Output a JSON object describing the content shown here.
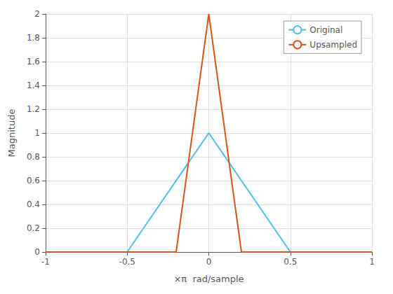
{
  "chart_data": {
    "type": "line",
    "x_label": "×π  rad/sample",
    "y_label": "Magnitude",
    "series": [
      {
        "name": "Original",
        "color": "#4DBEEE",
        "x": [
          -1.0,
          -0.5,
          0.0,
          0.5,
          1.0
        ],
        "values": [
          0.0,
          0.0,
          1.0,
          0.0,
          0.0
        ]
      },
      {
        "name": "Upsampled",
        "color": "#D95319",
        "x": [
          -1.0,
          -0.2,
          0.0,
          0.2,
          1.0
        ],
        "values": [
          0.0,
          0.0,
          2.0,
          0.0,
          0.0
        ]
      }
    ],
    "xlim": [
      -1,
      1
    ],
    "ylim": [
      0,
      2
    ],
    "xticks": [
      -1,
      -0.5,
      0,
      0.5,
      1
    ],
    "yticks": [
      0,
      0.2,
      0.4,
      0.6,
      0.8,
      1,
      1.2,
      1.4,
      1.6,
      1.8,
      2
    ],
    "grid": true,
    "legend": "upper right"
  }
}
